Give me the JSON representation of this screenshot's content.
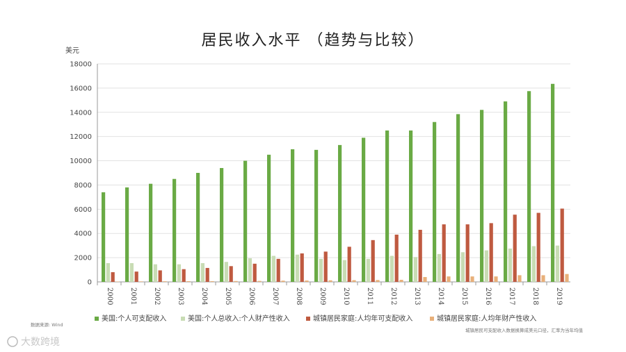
{
  "chart_data": {
    "type": "bar",
    "title": "居民收入水平 （趋势与比较）",
    "ylabel": "美元",
    "ylim": [
      0,
      18000
    ],
    "yticks": [
      0,
      2000,
      4000,
      6000,
      8000,
      10000,
      12000,
      14000,
      16000,
      18000
    ],
    "categories": [
      "2000",
      "2001",
      "2002",
      "2003",
      "2004",
      "2005",
      "2006",
      "2007",
      "2008",
      "2009",
      "2010",
      "2011",
      "2012",
      "2013",
      "2014",
      "2015",
      "2016",
      "2017",
      "2018",
      "2019"
    ],
    "grid": true,
    "legend_position": "bottom",
    "series": [
      {
        "name": "美国:个人可支配收入",
        "color": "#6aaa45",
        "values": [
          7400,
          7800,
          8100,
          8500,
          9000,
          9400,
          10000,
          10500,
          10950,
          10900,
          11300,
          11900,
          12500,
          12500,
          13200,
          13850,
          14200,
          14900,
          15750,
          16350
        ]
      },
      {
        "name": "美国:个人总收入:个人财产性收入",
        "color": "#c8dcb4",
        "values": [
          1550,
          1550,
          1450,
          1450,
          1550,
          1650,
          1950,
          2150,
          2250,
          1900,
          1800,
          1900,
          2150,
          2050,
          2300,
          2450,
          2600,
          2750,
          2950,
          3000
        ]
      },
      {
        "name": "城镇居民家庭:人均年可支配收入",
        "color": "#bf5a40",
        "values": [
          800,
          850,
          950,
          1050,
          1150,
          1300,
          1500,
          1900,
          2350,
          2500,
          2900,
          3450,
          3900,
          4300,
          4750,
          4750,
          4850,
          5550,
          5700,
          6050
        ]
      },
      {
        "name": "城镇居民家庭:人均年财产性收入",
        "color": "#e8b07a",
        "values": [
          30,
          40,
          50,
          60,
          60,
          70,
          80,
          100,
          110,
          130,
          140,
          150,
          170,
          400,
          450,
          450,
          450,
          550,
          550,
          650
        ]
      }
    ]
  },
  "footer": {
    "source": "数据来源: Wind",
    "note": "城镇居民可支配收入数据换算成美元口径，汇率为当年均值",
    "watermark": "大数跨境"
  }
}
